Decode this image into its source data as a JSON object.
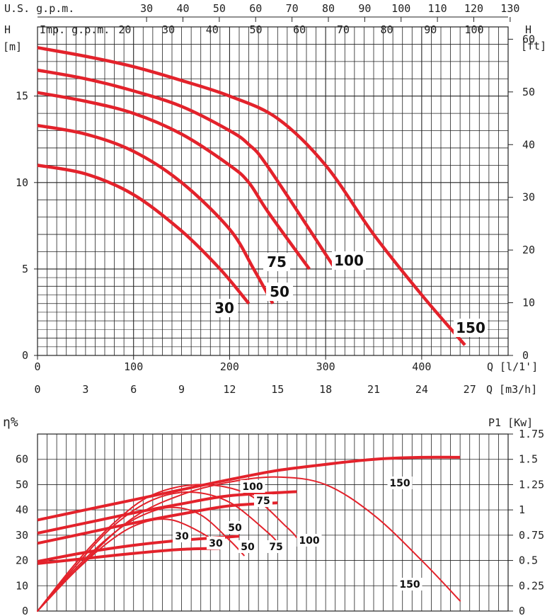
{
  "colors": {
    "curve": "#e3222b",
    "grid": "#222222",
    "text": "#222222"
  },
  "chart_data": [
    {
      "type": "line",
      "left_axis_label_1": "H",
      "left_axis_label_2": "[m]",
      "right_axis_label_1": "H",
      "right_axis_label_2": "[ft]",
      "top_axis_1_label": "U.S. g.p.m.",
      "top_axis_1_ticks": [
        "30",
        "40",
        "50",
        "60",
        "70",
        "80",
        "90",
        "100",
        "110",
        "120",
        "130"
      ],
      "top_axis_2_label": "Imp. g.p.m.",
      "top_axis_2_ticks": [
        "20",
        "30",
        "40",
        "50",
        "60",
        "70",
        "80",
        "90",
        "100"
      ],
      "x_ticks_lpm": [
        "0",
        "100",
        "200",
        "300",
        "400"
      ],
      "x_label_lpm": "Q [l/1']",
      "x_ticks_m3h": [
        "0",
        "3",
        "6",
        "9",
        "12",
        "15",
        "18",
        "21",
        "24",
        "27"
      ],
      "x_label_m3h": "Q [m3/h]",
      "y_ticks_m": [
        "0",
        "5",
        "10",
        "15"
      ],
      "y_ticks_ft": [
        "0",
        "10",
        "20",
        "30",
        "40",
        "50",
        "60"
      ],
      "xlim_lpm": [
        0,
        490
      ],
      "ylim_m": [
        0,
        19
      ],
      "series": [
        {
          "name": "30",
          "x": [
            0,
            50,
            100,
            150,
            190,
            220
          ],
          "y": [
            11,
            10.5,
            9.3,
            7.2,
            5,
            3
          ]
        },
        {
          "name": "50",
          "x": [
            0,
            50,
            100,
            150,
            200,
            225,
            245
          ],
          "y": [
            13.3,
            12.8,
            11.8,
            10,
            7.3,
            5,
            3
          ]
        },
        {
          "name": "75",
          "x": [
            0,
            50,
            100,
            150,
            200,
            220,
            240,
            283
          ],
          "y": [
            15.2,
            14.7,
            14,
            12.8,
            11,
            10,
            8.3,
            5
          ]
        },
        {
          "name": "100",
          "x": [
            0,
            50,
            100,
            150,
            200,
            220,
            240,
            310
          ],
          "y": [
            16.5,
            16,
            15.3,
            14.4,
            13,
            12.2,
            10.9,
            5
          ]
        },
        {
          "name": "150",
          "x": [
            0,
            50,
            100,
            150,
            200,
            250,
            300,
            350,
            400,
            445
          ],
          "y": [
            17.8,
            17.3,
            16.7,
            15.9,
            15,
            13.7,
            11,
            7,
            3.5,
            0.6
          ]
        }
      ]
    },
    {
      "type": "line",
      "left_axis_label": "η%",
      "right_axis_label": "P1 [Kw]",
      "y_ticks_pct": [
        "0",
        "10",
        "20",
        "30",
        "40",
        "50",
        "60"
      ],
      "y_ticks_kw": [
        "0",
        "0.25",
        "0.5",
        "0.75",
        "1",
        "1.25",
        "1.5",
        "1.75"
      ],
      "xlim_lpm": [
        0,
        490
      ],
      "ylim_pct": [
        0,
        70
      ],
      "efficiency_series": [
        {
          "name": "30",
          "x": [
            0,
            40,
            80,
            110,
            140,
            175,
            190
          ],
          "y": [
            0,
            16,
            29,
            35,
            36,
            30,
            25
          ]
        },
        {
          "name": "50",
          "x": [
            0,
            40,
            80,
            110,
            140,
            170,
            200,
            215
          ],
          "y": [
            0,
            17,
            31,
            38,
            41,
            38,
            28,
            22
          ]
        },
        {
          "name": "75",
          "x": [
            0,
            40,
            80,
            120,
            160,
            200,
            240,
            250
          ],
          "y": [
            0,
            18,
            34,
            44,
            47,
            43,
            31,
            27
          ]
        },
        {
          "name": "100",
          "x": [
            0,
            40,
            80,
            120,
            170,
            220,
            260,
            270
          ],
          "y": [
            0,
            19,
            35,
            46,
            50,
            46,
            33,
            29
          ]
        },
        {
          "name": "150",
          "x": [
            0,
            50,
            100,
            150,
            200,
            250,
            300,
            350,
            400,
            440
          ],
          "y": [
            0,
            20,
            37,
            46,
            51,
            53,
            50,
            38,
            20,
            4
          ]
        }
      ],
      "power_series": [
        {
          "name": "30",
          "x": [
            0,
            50,
            100,
            150,
            190
          ],
          "y": [
            0.47,
            0.52,
            0.57,
            0.61,
            0.62
          ]
        },
        {
          "name": "50",
          "x": [
            0,
            50,
            100,
            150,
            210
          ],
          "y": [
            0.49,
            0.58,
            0.65,
            0.7,
            0.74
          ]
        },
        {
          "name": "75",
          "x": [
            0,
            50,
            100,
            150,
            200,
            250
          ],
          "y": [
            0.67,
            0.77,
            0.87,
            0.96,
            1.04,
            1.07
          ]
        },
        {
          "name": "100",
          "x": [
            0,
            50,
            100,
            150,
            200,
            270
          ],
          "y": [
            0.77,
            0.87,
            0.97,
            1.06,
            1.14,
            1.18
          ]
        },
        {
          "name": "150",
          "x": [
            0,
            50,
            100,
            150,
            200,
            250,
            300,
            350,
            400,
            440
          ],
          "y": [
            0.9,
            1.0,
            1.1,
            1.2,
            1.3,
            1.39,
            1.45,
            1.5,
            1.52,
            1.52
          ]
        }
      ],
      "labels": [
        "30",
        "30",
        "50",
        "50",
        "75",
        "75",
        "100",
        "100",
        "150",
        "150"
      ]
    }
  ]
}
